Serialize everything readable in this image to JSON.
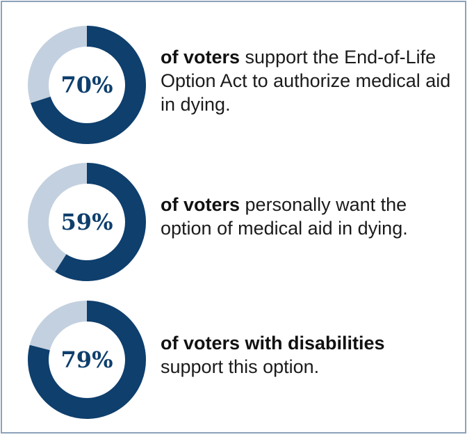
{
  "colors": {
    "accent": "#0e3f6d",
    "track": "#c3d0df",
    "border": "#8da1b9"
  },
  "chart_data": [
    {
      "type": "pie",
      "values": [
        70,
        30
      ],
      "center_label": "70%",
      "caption_bold": "of voters",
      "caption_rest": " support the End-of-Life Option Act to authorize medical aid in dying."
    },
    {
      "type": "pie",
      "values": [
        59,
        41
      ],
      "center_label": "59%",
      "caption_bold": "of voters",
      "caption_rest": " personally want the option of medical aid in dying."
    },
    {
      "type": "pie",
      "values": [
        79,
        21
      ],
      "center_label": "79%",
      "caption_bold": "of voters with disabilities",
      "caption_rest": " support this option."
    }
  ]
}
